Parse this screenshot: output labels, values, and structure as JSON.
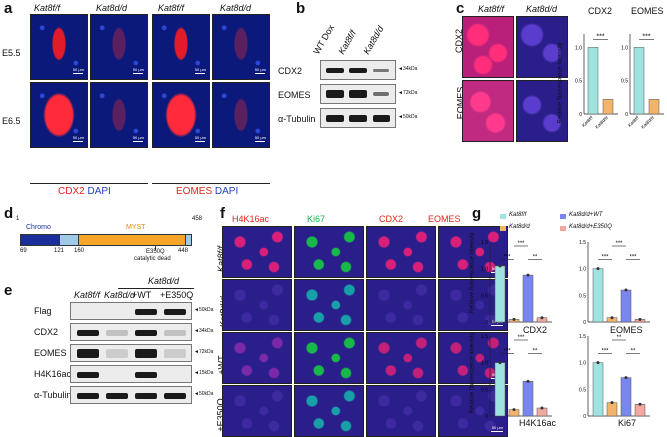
{
  "panel_letters": [
    "a",
    "b",
    "c",
    "d",
    "e",
    "f",
    "g"
  ],
  "a": {
    "columns": [
      "Kat8f/f",
      "Kat8d/d",
      "Kat8f/f",
      "Kat8d/d"
    ],
    "rows": [
      "E5.5",
      "E6.5"
    ],
    "scale": "50 μm",
    "legend_left": {
      "c1": "CDX2",
      "c2": "DAPI"
    },
    "legend_right": {
      "c1": "EOMES",
      "c2": "DAPI"
    },
    "colors": {
      "red": "#e2231a",
      "blue": "#1f3fbf"
    }
  },
  "b": {
    "columns": [
      "WT Dox",
      "Kat8f/f",
      "Kat8d/d"
    ],
    "rows": [
      "CDX2",
      "EOMES",
      "α-Tubulin"
    ],
    "markers": [
      "◄34kDa",
      "◄72kDa",
      "◄50kDa"
    ]
  },
  "c": {
    "columns": [
      "Kat8f/f",
      "Kat8d/d"
    ],
    "rows": [
      "CDX2",
      "EOMES"
    ],
    "scale": "50 μm",
    "charts": [
      {
        "type": "bar",
        "title": "CDX2",
        "ylabel": "Relative fluorescence intensity",
        "categories": [
          "Kat8f/f",
          "Kat8d/d"
        ],
        "values": [
          1.0,
          0.22
        ],
        "ylim": [
          0,
          1.2
        ],
        "yticks": [
          "0",
          "0.5",
          "1.0"
        ],
        "sig": "***"
      },
      {
        "type": "bar",
        "title": "EOMES",
        "categories": [
          "Kat8f/f",
          "Kat8d/d"
        ],
        "values": [
          1.0,
          0.22
        ],
        "ylim": [
          0,
          1.2
        ],
        "yticks": [
          "0",
          "0.5",
          "1.0"
        ],
        "sig": "***"
      }
    ]
  },
  "d": {
    "start": "1",
    "end": "458",
    "chromo": "Chromo",
    "myst": "MYST",
    "positions": [
      "69",
      "121",
      "160",
      "448"
    ],
    "mutation": "E350Q",
    "mutation_note": "catalytic dead"
  },
  "e": {
    "header": "Kat8d/d",
    "columns": [
      "Kat8f/f",
      "Kat8d/d",
      "+WT",
      "+E350Q"
    ],
    "rows": [
      "Flag",
      "CDX2",
      "EOMES",
      "H4K16ac",
      "α-Tubulin"
    ],
    "markers": [
      "◄50kDa",
      "◄34kDa",
      "◄72kDa",
      "◄15kDa",
      "◄50kDa"
    ]
  },
  "f": {
    "columns": [
      "H4K16ac",
      "Ki67",
      "CDX2",
      "EOMES"
    ],
    "rows": [
      "Kat8f/f",
      "Kat8d/d",
      "+WT",
      "+E350Q"
    ],
    "scale": "50 μm",
    "colors": {
      "H4K16ac": "#e2231a",
      "Ki67": "#19b84a",
      "CDX2": "#e2231a",
      "EOMES": "#e2231a"
    }
  },
  "g": {
    "legend": [
      "Kat8f/f",
      "Kat8d/d",
      "Kat8d/d+WT",
      "Kat8d/d+E350Q"
    ],
    "legend_colors": [
      "#9fe3e0",
      "#f2b36b",
      "#7a86f0",
      "#f0a8a0"
    ],
    "ylabel": "Relative fluorescence intensity",
    "yticks": [
      "0",
      "0.5",
      "1.0",
      "1.5"
    ]
  },
  "chart_data": [
    {
      "type": "bar",
      "title": "CDX2",
      "categories": [
        "Kat8f/f",
        "Kat8d/d",
        "Kat8d/d+WT",
        "Kat8d/d+E350Q"
      ],
      "values": [
        1.05,
        0.05,
        0.88,
        0.08
      ],
      "ylim": [
        0,
        1.5
      ],
      "sig": [
        "***",
        "***",
        "**"
      ]
    },
    {
      "type": "bar",
      "title": "EOMES",
      "categories": [
        "Kat8f/f",
        "Kat8d/d",
        "Kat8d/d+WT",
        "Kat8d/d+E350Q"
      ],
      "values": [
        1.0,
        0.08,
        0.6,
        0.05
      ],
      "ylim": [
        0,
        1.5
      ],
      "sig": [
        "***",
        "***",
        "***"
      ]
    },
    {
      "type": "bar",
      "title": "H4K16ac",
      "categories": [
        "Kat8f/f",
        "Kat8d/d",
        "Kat8d/d+WT",
        "Kat8d/d+E350Q"
      ],
      "values": [
        1.0,
        0.12,
        0.65,
        0.15
      ],
      "ylim": [
        0,
        1.5
      ],
      "sig": [
        "***",
        "***",
        "**"
      ]
    },
    {
      "type": "bar",
      "title": "Ki67",
      "categories": [
        "Kat8f/f",
        "Kat8d/d",
        "Kat8d/d+WT",
        "Kat8d/d+E350Q"
      ],
      "values": [
        1.0,
        0.25,
        0.72,
        0.22
      ],
      "ylim": [
        0,
        1.5
      ],
      "sig": [
        "***",
        "**",
        "**"
      ]
    }
  ]
}
